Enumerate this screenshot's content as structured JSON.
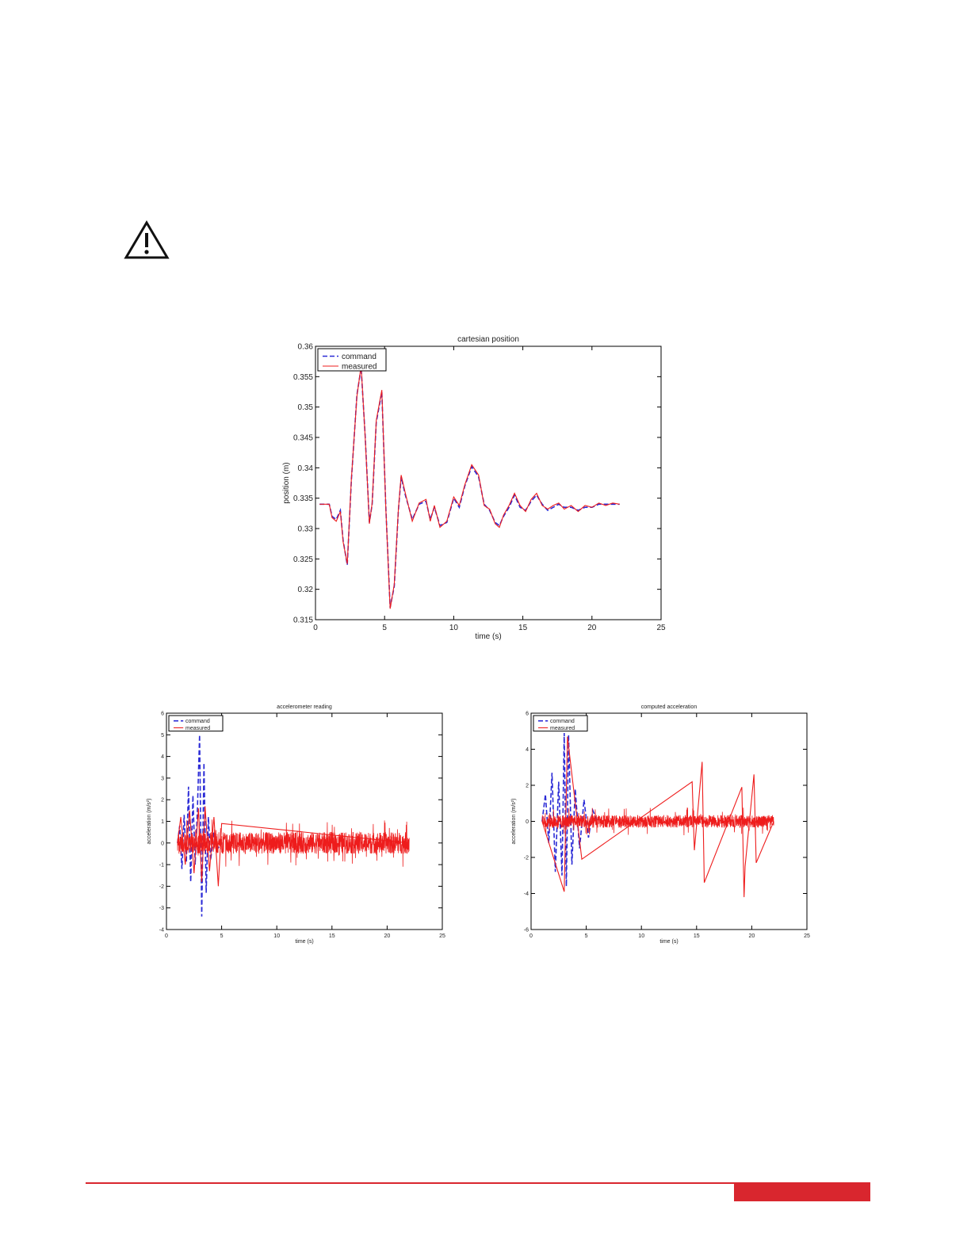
{
  "colors": {
    "command": "#2b2bd6",
    "measured": "#ee1c1c",
    "accent": "#d9262e"
  },
  "icons": {
    "warning": "warning-triangle-icon"
  },
  "chart_data": [
    {
      "type": "line",
      "title": "cartesian position",
      "xlabel": "time (s)",
      "ylabel": "position (m)",
      "xlim": [
        0,
        25
      ],
      "ylim": [
        0.315,
        0.36
      ],
      "xticks": [
        "0",
        "5",
        "10",
        "15",
        "20",
        "25"
      ],
      "yticks": [
        "0.315",
        "0.32",
        "0.325",
        "0.33",
        "0.335",
        "0.34",
        "0.345",
        "0.35",
        "0.355",
        "0.36"
      ],
      "legend": {
        "position": "top-left",
        "entries": [
          "command",
          "measured"
        ]
      },
      "series": [
        {
          "name": "command",
          "style": "dashed",
          "x": [
            0.3,
            0.5,
            1.0,
            1.2,
            1.5,
            1.8,
            2.0,
            2.3,
            2.6,
            3.0,
            3.3,
            3.6,
            3.9,
            4.1,
            4.4,
            4.8,
            5.1,
            5.4,
            5.7,
            6.0,
            6.2,
            6.5,
            7.0,
            7.5,
            8.0,
            8.3,
            8.6,
            9.0,
            9.5,
            10.0,
            10.4,
            10.8,
            11.3,
            11.8,
            12.2,
            12.6,
            13.0,
            13.3,
            13.6,
            14.0,
            14.4,
            14.8,
            15.2,
            15.6,
            16.0,
            16.4,
            16.8,
            17.2,
            17.6,
            18.0,
            18.5,
            19.0,
            19.5,
            20.0,
            20.5,
            21.0,
            21.5,
            22.0
          ],
          "y": [
            0.334,
            0.334,
            0.334,
            0.332,
            0.3315,
            0.333,
            0.328,
            0.324,
            0.338,
            0.352,
            0.3565,
            0.345,
            0.331,
            0.334,
            0.3475,
            0.3525,
            0.333,
            0.317,
            0.3205,
            0.333,
            0.3385,
            0.3355,
            0.3315,
            0.334,
            0.3345,
            0.3315,
            0.3335,
            0.3305,
            0.331,
            0.335,
            0.3335,
            0.337,
            0.3402,
            0.3385,
            0.334,
            0.333,
            0.331,
            0.3305,
            0.332,
            0.3335,
            0.3355,
            0.3335,
            0.333,
            0.3345,
            0.3355,
            0.334,
            0.333,
            0.3335,
            0.334,
            0.3335,
            0.3335,
            0.333,
            0.3335,
            0.3335,
            0.334,
            0.334,
            0.334,
            0.334
          ]
        },
        {
          "name": "measured",
          "style": "solid",
          "x": [
            0.3,
            0.5,
            1.0,
            1.2,
            1.5,
            1.8,
            2.0,
            2.3,
            2.6,
            3.0,
            3.3,
            3.6,
            3.9,
            4.1,
            4.4,
            4.8,
            5.1,
            5.4,
            5.7,
            6.0,
            6.2,
            6.5,
            7.0,
            7.5,
            8.0,
            8.3,
            8.6,
            9.0,
            9.5,
            10.0,
            10.4,
            10.8,
            11.3,
            11.8,
            12.2,
            12.6,
            13.0,
            13.3,
            13.6,
            14.0,
            14.4,
            14.8,
            15.2,
            15.6,
            16.0,
            16.4,
            16.8,
            17.2,
            17.6,
            18.0,
            18.5,
            19.0,
            19.5,
            20.0,
            20.5,
            21.0,
            21.5,
            22.0
          ],
          "y": [
            0.334,
            0.334,
            0.334,
            0.3318,
            0.3312,
            0.3328,
            0.3278,
            0.3242,
            0.3382,
            0.3518,
            0.3568,
            0.3448,
            0.3308,
            0.3342,
            0.3478,
            0.3528,
            0.3328,
            0.3168,
            0.3208,
            0.3332,
            0.3388,
            0.3358,
            0.3312,
            0.3342,
            0.3348,
            0.3312,
            0.3338,
            0.3302,
            0.3312,
            0.3352,
            0.3338,
            0.3372,
            0.3405,
            0.3388,
            0.3338,
            0.3332,
            0.3308,
            0.3302,
            0.3322,
            0.3338,
            0.3358,
            0.3338,
            0.3328,
            0.3348,
            0.3358,
            0.3338,
            0.3332,
            0.3338,
            0.3342,
            0.3332,
            0.3338,
            0.3328,
            0.3338,
            0.3335,
            0.3342,
            0.3338,
            0.3342,
            0.334
          ]
        }
      ]
    },
    {
      "type": "line",
      "title": "accelerometer reading",
      "xlabel": "time (s)",
      "ylabel": "acceleration (m/s²)",
      "xlim": [
        0,
        25
      ],
      "ylim": [
        -4,
        6
      ],
      "xticks": [
        "0",
        "5",
        "10",
        "15",
        "20",
        "25"
      ],
      "yticks": [
        "-4",
        "-3",
        "-2",
        "-1",
        "0",
        "1",
        "2",
        "3",
        "4",
        "5",
        "6"
      ],
      "legend": {
        "position": "top-left",
        "entries": [
          "command",
          "measured"
        ]
      },
      "series": [
        {
          "name": "command",
          "style": "dashed",
          "x": [
            1.0,
            1.2,
            1.4,
            1.6,
            1.8,
            2.0,
            2.2,
            2.4,
            2.6,
            2.8,
            3.0,
            3.2,
            3.4,
            3.6,
            3.8,
            4.0,
            4.3,
            4.6,
            5.0
          ],
          "y": [
            0.0,
            0.8,
            -1.2,
            1.3,
            -0.9,
            2.6,
            -1.8,
            2.2,
            -1.0,
            1.5,
            5.0,
            -3.4,
            3.7,
            -2.3,
            1.2,
            -0.8,
            0.5,
            -0.3,
            0.0
          ]
        },
        {
          "name": "measured",
          "style": "solid",
          "noise_band": {
            "t_start": 1.0,
            "t_end": 22.0,
            "amplitude": 0.5
          },
          "x": [
            1.0,
            1.3,
            1.7,
            2.1,
            2.5,
            2.9,
            3.2,
            3.5,
            3.9,
            4.3,
            4.7,
            5.0,
            22.0
          ],
          "y": [
            0.0,
            1.2,
            -1.0,
            1.5,
            -1.4,
            1.6,
            -1.8,
            1.7,
            -1.3,
            1.2,
            -2.0,
            0.9,
            0.0
          ]
        }
      ]
    },
    {
      "type": "line",
      "title": "computed acceleration",
      "xlabel": "time (s)",
      "ylabel": "acceleration (m/s²)",
      "xlim": [
        0,
        25
      ],
      "ylim": [
        -6,
        6
      ],
      "xticks": [
        "0",
        "5",
        "10",
        "15",
        "20",
        "25"
      ],
      "yticks": [
        "-6",
        "-4",
        "-2",
        "0",
        "2",
        "4",
        "6"
      ],
      "legend": {
        "position": "top-left",
        "entries": [
          "command",
          "measured"
        ]
      },
      "series": [
        {
          "name": "command",
          "style": "dashed",
          "x": [
            1.0,
            1.3,
            1.6,
            1.9,
            2.2,
            2.5,
            2.8,
            3.0,
            3.2,
            3.4,
            3.7,
            4.0,
            4.4,
            4.8,
            5.2,
            5.6,
            6.0
          ],
          "y": [
            0.0,
            1.5,
            -1.2,
            2.7,
            -2.8,
            2.2,
            -3.0,
            4.9,
            -3.6,
            4.8,
            -2.4,
            1.8,
            -1.5,
            1.2,
            -0.9,
            0.6,
            0.0
          ]
        },
        {
          "name": "measured",
          "style": "solid",
          "noise_band": {
            "t_start": 1.0,
            "t_end": 22.0,
            "amplitude": 0.35
          },
          "x": [
            1.0,
            3.0,
            3.3,
            4.6,
            14.6,
            14.8,
            15.5,
            15.7,
            19.1,
            19.3,
            19.4,
            20.2,
            20.4,
            22.0
          ],
          "y": [
            0.0,
            -3.9,
            4.7,
            -2.1,
            2.2,
            -1.6,
            3.3,
            -3.4,
            1.9,
            -4.2,
            -2.5,
            2.6,
            -2.3,
            0.0
          ]
        }
      ]
    }
  ]
}
